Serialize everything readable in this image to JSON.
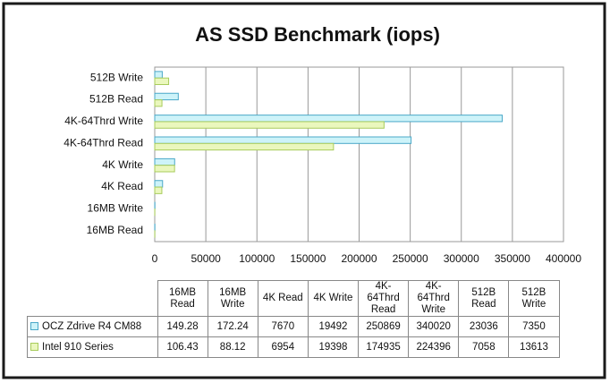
{
  "chart_data": {
    "type": "bar",
    "horizontal": true,
    "title": "AS SSD Benchmark (iops)",
    "categories": [
      "16MB Read",
      "16MB Write",
      "4K Read",
      "4K Write",
      "4K-64Thrd Read",
      "4K-64Thrd Write",
      "512B Read",
      "512B Write"
    ],
    "series": [
      {
        "name": "OCZ Zdrive R4 CM88",
        "color": "#cdf3f9",
        "border_color": "#4aa8c8",
        "values": [
          149.28,
          172.24,
          7670,
          19492,
          250869,
          340020,
          23036,
          7350
        ]
      },
      {
        "name": "Intel 910 Series",
        "color": "#eaf7bd",
        "border_color": "#a8cc5c",
        "values": [
          106.43,
          88.12,
          6954,
          19398,
          174935,
          224396,
          7058,
          13613
        ]
      }
    ],
    "xlim": [
      0,
      400000
    ],
    "xticks": [
      0,
      50000,
      100000,
      150000,
      200000,
      250000,
      300000,
      350000,
      400000
    ],
    "grid": true
  }
}
